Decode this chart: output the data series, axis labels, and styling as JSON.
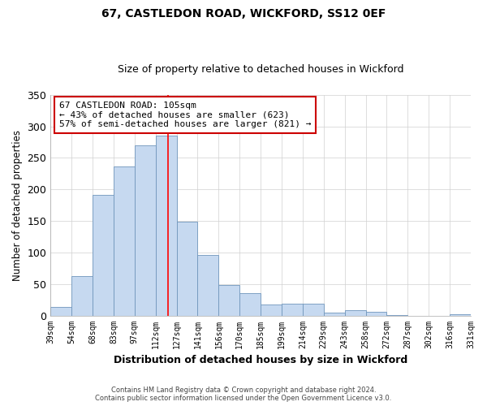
{
  "title": "67, CASTLEDON ROAD, WICKFORD, SS12 0EF",
  "subtitle": "Size of property relative to detached houses in Wickford",
  "xlabel": "Distribution of detached houses by size in Wickford",
  "ylabel": "Number of detached properties",
  "bar_labels": [
    "39sqm",
    "54sqm",
    "68sqm",
    "83sqm",
    "97sqm",
    "112sqm",
    "127sqm",
    "141sqm",
    "156sqm",
    "170sqm",
    "185sqm",
    "199sqm",
    "214sqm",
    "229sqm",
    "243sqm",
    "258sqm",
    "272sqm",
    "287sqm",
    "302sqm",
    "316sqm",
    "331sqm"
  ],
  "bar_values": [
    13,
    62,
    191,
    237,
    270,
    285,
    149,
    96,
    48,
    35,
    17,
    19,
    19,
    5,
    8,
    6,
    1,
    0,
    0,
    2
  ],
  "bar_color": "#c6d9f0",
  "bar_edge_color": "#7096bc",
  "red_line_x": 5.6,
  "annotation_text": "67 CASTLEDON ROAD: 105sqm\n← 43% of detached houses are smaller (623)\n57% of semi-detached houses are larger (821) →",
  "annotation_box_color": "#ffffff",
  "annotation_box_edge": "#cc0000",
  "ylim": [
    0,
    350
  ],
  "yticks": [
    0,
    50,
    100,
    150,
    200,
    250,
    300,
    350
  ],
  "footer_line1": "Contains HM Land Registry data © Crown copyright and database right 2024.",
  "footer_line2": "Contains public sector information licensed under the Open Government Licence v3.0.",
  "background_color": "#ffffff",
  "grid_color": "#d0d0d0"
}
